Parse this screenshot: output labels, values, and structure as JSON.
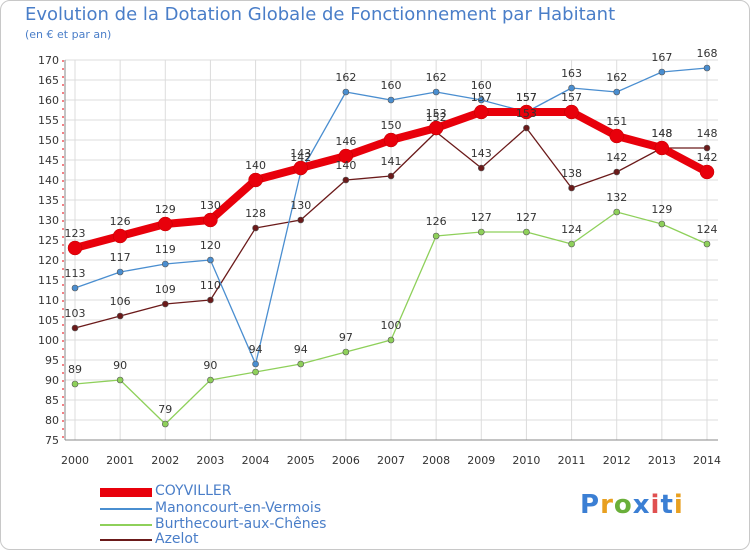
{
  "chart_data": {
    "type": "line",
    "title": "Evolution de la Dotation Globale de Fonctionnement par Habitant",
    "subtitle": "(en € et par an)",
    "xlabel": "",
    "ylabel": "",
    "x": [
      "2000",
      "2001",
      "2002",
      "2003",
      "2004",
      "2005",
      "2006",
      "2007",
      "2008",
      "2009",
      "2010",
      "2011",
      "2012",
      "2013",
      "2014"
    ],
    "ylim": [
      75,
      170
    ],
    "yticks": [
      75,
      80,
      85,
      90,
      95,
      100,
      105,
      110,
      115,
      120,
      125,
      130,
      135,
      140,
      145,
      150,
      155,
      160,
      165,
      170
    ],
    "grid": true,
    "legend_position": "bottom-left",
    "series": [
      {
        "name": "COYVILLER",
        "color": "#e8000b",
        "values": [
          123,
          126,
          129,
          130,
          140,
          143,
          146,
          150,
          153,
          157,
          157,
          157,
          151,
          148,
          142
        ]
      },
      {
        "name": "Manoncourt-en-Vermois",
        "color": "#4a8ed0",
        "values": [
          113,
          117,
          119,
          120,
          94,
          142,
          162,
          160,
          162,
          160,
          157,
          163,
          162,
          167,
          168
        ]
      },
      {
        "name": "Burthecourt-aux-Chênes",
        "color": "#8ed05a",
        "values": [
          89,
          90,
          79,
          90,
          92,
          94,
          97,
          100,
          126,
          127,
          127,
          124,
          132,
          129,
          124
        ]
      },
      {
        "name": "Azelot",
        "color": "#6b1a1a",
        "values": [
          103,
          106,
          109,
          110,
          128,
          130,
          140,
          141,
          152,
          143,
          153,
          138,
          142,
          148,
          148
        ]
      }
    ],
    "point_labels": [
      [
        "123",
        "126",
        "129",
        "130",
        "140",
        "143",
        "146",
        "150",
        "153",
        "157",
        "157",
        "157",
        "151",
        "148",
        "142"
      ],
      [
        "113",
        "117",
        "119",
        "120",
        "94",
        "142",
        "162",
        "160",
        "162",
        "160",
        "157",
        "163",
        "162",
        "167",
        "168"
      ],
      [
        "89",
        "90",
        "79",
        "90",
        "",
        "94",
        "97",
        "100",
        "126",
        "127",
        "127",
        "124",
        "132",
        "129",
        "124"
      ],
      [
        "103",
        "106",
        "109",
        "110",
        "128",
        "130",
        "140",
        "141",
        "152",
        "143",
        "153",
        "138",
        "142",
        "148",
        "148"
      ]
    ]
  },
  "logo": {
    "text": "Proxiti",
    "colors": [
      "#3b7fd4",
      "#e8a020",
      "#6aaf3a",
      "#3b7fd4",
      "#e05050",
      "#3b7fd4",
      "#e8a020"
    ]
  }
}
